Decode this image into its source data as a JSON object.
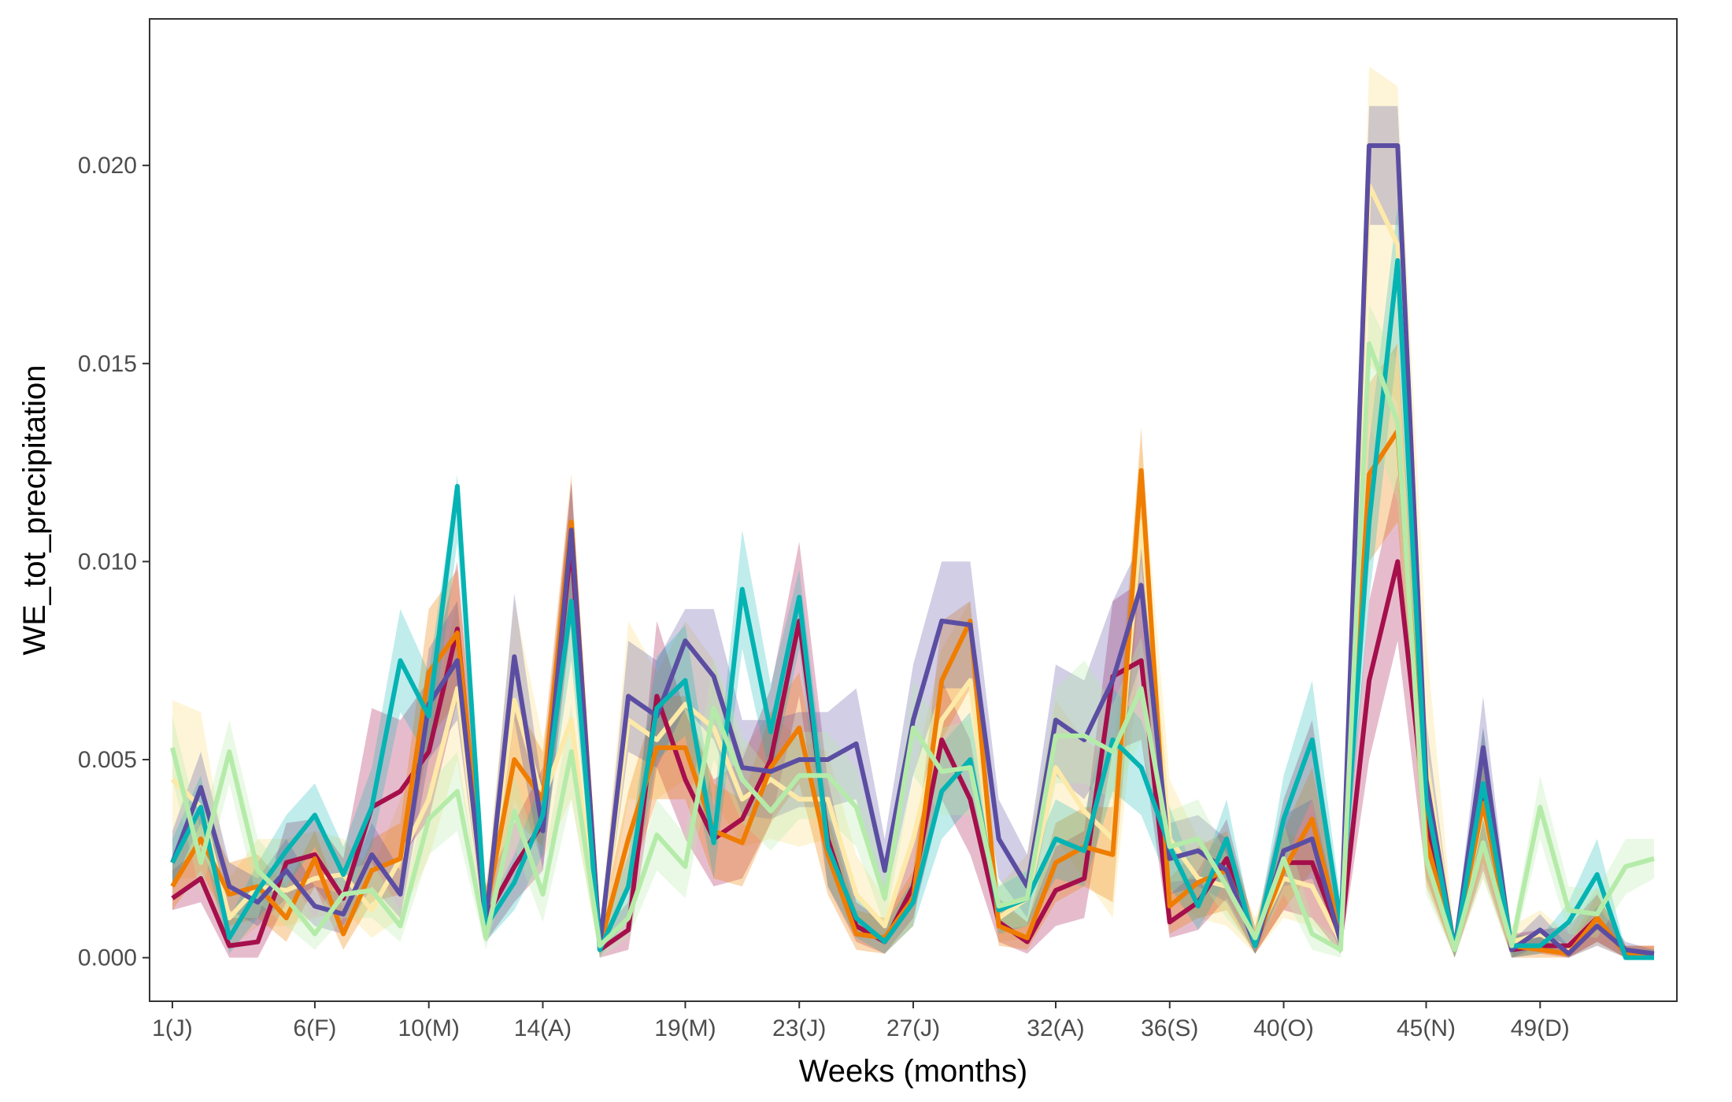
{
  "chart_data": {
    "type": "line",
    "title": "",
    "xlabel": "Weeks (months)",
    "ylabel": "WE_tot_precipitation",
    "xlim": [
      0.2,
      53.8
    ],
    "ylim": [
      -0.0011,
      0.0237
    ],
    "yticks": [
      {
        "value": 0.0,
        "label": "0.000"
      },
      {
        "value": 0.005,
        "label": "0.005"
      },
      {
        "value": 0.01,
        "label": "0.010"
      },
      {
        "value": 0.015,
        "label": "0.015"
      },
      {
        "value": 0.02,
        "label": "0.020"
      }
    ],
    "xticks": [
      {
        "value": 1,
        "label": "1(J)"
      },
      {
        "value": 6,
        "label": "6(F)"
      },
      {
        "value": 10,
        "label": "10(M)"
      },
      {
        "value": 14,
        "label": "14(A)"
      },
      {
        "value": 19,
        "label": "19(M)"
      },
      {
        "value": 23,
        "label": "23(J)"
      },
      {
        "value": 27,
        "label": "27(J)"
      },
      {
        "value": 32,
        "label": "32(A)"
      },
      {
        "value": 36,
        "label": "36(S)"
      },
      {
        "value": 40,
        "label": "40(O)"
      },
      {
        "value": 45,
        "label": "45(N)"
      },
      {
        "value": 49,
        "label": "49(D)"
      }
    ],
    "grid": false,
    "legend": "none",
    "x": [
      1,
      2,
      3,
      4,
      5,
      6,
      7,
      8,
      9,
      10,
      11,
      12,
      13,
      14,
      15,
      16,
      17,
      18,
      19,
      20,
      21,
      22,
      23,
      24,
      25,
      26,
      27,
      28,
      29,
      30,
      31,
      32,
      33,
      34,
      35,
      36,
      37,
      38,
      39,
      40,
      41,
      42,
      43,
      44,
      45,
      46,
      47,
      48,
      49,
      50,
      51,
      52,
      53
    ],
    "series": [
      {
        "color": "#fde9a8",
        "band_opacity": 0.45,
        "values": [
          0.0045,
          0.0038,
          0.001,
          0.0018,
          0.0017,
          0.002,
          0.0021,
          0.0012,
          0.0025,
          0.004,
          0.0068,
          0.001,
          0.0065,
          0.004,
          0.006,
          0.0003,
          0.006,
          0.0055,
          0.0064,
          0.0058,
          0.004,
          0.0045,
          0.004,
          0.004,
          0.0016,
          0.0008,
          0.003,
          0.006,
          0.007,
          0.001,
          0.0015,
          0.0048,
          0.0037,
          0.003,
          0.011,
          0.003,
          0.002,
          0.0018,
          0.0005,
          0.002,
          0.0018,
          0.0004,
          0.0195,
          0.018,
          0.005,
          0.0002,
          0.0038,
          0.0004,
          0.0006,
          0.0002,
          0.001,
          0.0001,
          0.0001
        ],
        "lower": [
          0.002,
          0.002,
          0.0002,
          0.0008,
          0.0008,
          0.001,
          0.0012,
          0.0005,
          0.001,
          0.0025,
          0.005,
          0.0004,
          0.004,
          0.0025,
          0.004,
          0.0,
          0.004,
          0.004,
          0.0045,
          0.004,
          0.0028,
          0.003,
          0.0028,
          0.003,
          0.0008,
          0.0003,
          0.0015,
          0.004,
          0.005,
          0.0004,
          0.0005,
          0.003,
          0.002,
          0.001,
          0.008,
          0.0015,
          0.001,
          0.0008,
          0.0001,
          0.001,
          0.0008,
          0.0001,
          0.015,
          0.014,
          0.002,
          0.0,
          0.002,
          0.0,
          0.0002,
          0.0,
          0.0003,
          0.0,
          0.0
        ],
        "upper": [
          0.0065,
          0.0062,
          0.002,
          0.003,
          0.003,
          0.0032,
          0.003,
          0.0022,
          0.004,
          0.0058,
          0.009,
          0.0018,
          0.009,
          0.0055,
          0.0085,
          0.0008,
          0.0085,
          0.0072,
          0.0085,
          0.0075,
          0.0052,
          0.0062,
          0.0055,
          0.0052,
          0.0026,
          0.0015,
          0.0045,
          0.0078,
          0.009,
          0.0018,
          0.0026,
          0.0065,
          0.0055,
          0.005,
          0.013,
          0.0045,
          0.003,
          0.0028,
          0.001,
          0.0032,
          0.0028,
          0.0008,
          0.0225,
          0.022,
          0.008,
          0.0005,
          0.0055,
          0.0008,
          0.0012,
          0.0006,
          0.0018,
          0.0003,
          0.0003
        ]
      },
      {
        "color": "#a50f4b",
        "band_opacity": 0.28,
        "values": [
          0.0015,
          0.002,
          0.0003,
          0.0004,
          0.0024,
          0.0026,
          0.0015,
          0.0038,
          0.0042,
          0.0052,
          0.0083,
          0.001,
          0.0023,
          0.0034,
          0.0105,
          0.0002,
          0.0007,
          0.0066,
          0.0045,
          0.003,
          0.0035,
          0.005,
          0.0085,
          0.003,
          0.0008,
          0.0004,
          0.0018,
          0.0055,
          0.004,
          0.0009,
          0.0004,
          0.0017,
          0.002,
          0.0071,
          0.0075,
          0.0009,
          0.0014,
          0.0025,
          0.0003,
          0.0024,
          0.0024,
          0.0005,
          0.007,
          0.01,
          0.0035,
          0.0002,
          0.004,
          0.0002,
          0.0003,
          0.0003,
          0.001,
          0.0001,
          0.0001
        ],
        "lower": [
          0.0012,
          0.0014,
          0.0,
          0.0,
          0.0014,
          0.0018,
          0.0008,
          0.0022,
          0.0025,
          0.0035,
          0.0065,
          0.0004,
          0.0014,
          0.0022,
          0.0085,
          0.0,
          0.0002,
          0.0048,
          0.003,
          0.0018,
          0.002,
          0.0034,
          0.0066,
          0.0018,
          0.0004,
          0.0001,
          0.001,
          0.004,
          0.0026,
          0.0004,
          0.0001,
          0.0008,
          0.001,
          0.0052,
          0.0055,
          0.0005,
          0.0007,
          0.0015,
          0.0001,
          0.0012,
          0.001,
          0.0001,
          0.005,
          0.008,
          0.002,
          0.0,
          0.0022,
          0.0,
          0.0001,
          0.0,
          0.0004,
          0.0,
          0.0
        ],
        "upper": [
          0.0022,
          0.0028,
          0.001,
          0.001,
          0.0034,
          0.0035,
          0.0025,
          0.0063,
          0.006,
          0.007,
          0.01,
          0.0018,
          0.0034,
          0.0048,
          0.012,
          0.0006,
          0.0014,
          0.0085,
          0.0062,
          0.0045,
          0.005,
          0.0068,
          0.0105,
          0.0045,
          0.0014,
          0.0009,
          0.0028,
          0.007,
          0.0055,
          0.0015,
          0.0009,
          0.0028,
          0.0032,
          0.009,
          0.0095,
          0.0016,
          0.0022,
          0.0035,
          0.0007,
          0.004,
          0.006,
          0.0012,
          0.009,
          0.0122,
          0.005,
          0.0005,
          0.0058,
          0.0006,
          0.0007,
          0.0008,
          0.0016,
          0.0003,
          0.0003
        ]
      },
      {
        "color": "#ef7d00",
        "band_opacity": 0.3,
        "values": [
          0.0018,
          0.003,
          0.0016,
          0.0018,
          0.001,
          0.0025,
          0.0006,
          0.0022,
          0.0025,
          0.0072,
          0.0082,
          0.0012,
          0.005,
          0.004,
          0.011,
          0.0003,
          0.003,
          0.0053,
          0.0053,
          0.0032,
          0.0029,
          0.0048,
          0.0058,
          0.0026,
          0.0006,
          0.0005,
          0.0015,
          0.007,
          0.0085,
          0.0008,
          0.0005,
          0.0024,
          0.0028,
          0.0026,
          0.0123,
          0.0013,
          0.0019,
          0.0022,
          0.0004,
          0.0022,
          0.0035,
          0.0006,
          0.0122,
          0.0133,
          0.003,
          0.0002,
          0.0039,
          0.0003,
          0.0002,
          0.0001,
          0.001,
          0.0001,
          0.0001
        ],
        "lower": [
          0.0012,
          0.0022,
          0.0008,
          0.001,
          0.0004,
          0.0018,
          0.0002,
          0.0014,
          0.0016,
          0.0055,
          0.0065,
          0.0006,
          0.0035,
          0.0028,
          0.009,
          0.0,
          0.0018,
          0.004,
          0.004,
          0.002,
          0.0018,
          0.0034,
          0.0044,
          0.0016,
          0.0002,
          0.0001,
          0.0008,
          0.0055,
          0.0068,
          0.0003,
          0.0002,
          0.0014,
          0.0018,
          0.0014,
          0.01,
          0.0006,
          0.001,
          0.0012,
          0.0001,
          0.0012,
          0.0022,
          0.0002,
          0.01,
          0.011,
          0.0018,
          0.0,
          0.0024,
          0.0,
          0.0,
          0.0,
          0.0004,
          0.0,
          0.0
        ],
        "upper": [
          0.0024,
          0.0038,
          0.0024,
          0.0026,
          0.0018,
          0.0032,
          0.0012,
          0.003,
          0.0034,
          0.0088,
          0.0098,
          0.0018,
          0.0065,
          0.0052,
          0.0122,
          0.0007,
          0.0042,
          0.0066,
          0.0066,
          0.0044,
          0.004,
          0.0062,
          0.0072,
          0.0036,
          0.0012,
          0.001,
          0.0022,
          0.0085,
          0.009,
          0.0014,
          0.0009,
          0.0034,
          0.0038,
          0.0038,
          0.0134,
          0.002,
          0.0028,
          0.0032,
          0.0008,
          0.0032,
          0.0048,
          0.0011,
          0.0145,
          0.0155,
          0.0042,
          0.0005,
          0.0054,
          0.0006,
          0.0005,
          0.0003,
          0.0016,
          0.0003,
          0.0003
        ]
      },
      {
        "color": "#5b4ea2",
        "band_opacity": 0.28,
        "values": [
          0.0024,
          0.0043,
          0.0018,
          0.0014,
          0.0022,
          0.0013,
          0.0011,
          0.0026,
          0.0016,
          0.0064,
          0.0075,
          0.0009,
          0.0076,
          0.0032,
          0.0108,
          0.0003,
          0.0066,
          0.0061,
          0.008,
          0.0071,
          0.0048,
          0.0047,
          0.005,
          0.005,
          0.0054,
          0.0022,
          0.006,
          0.0085,
          0.0084,
          0.003,
          0.0018,
          0.006,
          0.0055,
          0.007,
          0.0094,
          0.0025,
          0.0027,
          0.0022,
          0.0003,
          0.0027,
          0.003,
          0.0004,
          0.0205,
          0.0205,
          0.0045,
          0.0002,
          0.0053,
          0.0002,
          0.0007,
          0.0001,
          0.0008,
          0.0002,
          0.0001
        ],
        "lower": [
          0.0018,
          0.0034,
          0.0012,
          0.0008,
          0.0015,
          0.0008,
          0.0006,
          0.0018,
          0.001,
          0.005,
          0.006,
          0.0005,
          0.006,
          0.0022,
          0.009,
          0.0,
          0.0052,
          0.0048,
          0.0063,
          0.0055,
          0.0036,
          0.0035,
          0.0038,
          0.0038,
          0.004,
          0.0014,
          0.0046,
          0.0068,
          0.0068,
          0.002,
          0.001,
          0.0046,
          0.004,
          0.0052,
          0.0075,
          0.0016,
          0.0018,
          0.0014,
          0.0001,
          0.0018,
          0.002,
          0.0001,
          0.0185,
          0.0185,
          0.003,
          0.0,
          0.004,
          0.0,
          0.0003,
          0.0,
          0.0003,
          0.0,
          0.0
        ],
        "upper": [
          0.0032,
          0.0052,
          0.0024,
          0.002,
          0.003,
          0.0018,
          0.0016,
          0.0034,
          0.0022,
          0.0078,
          0.009,
          0.0013,
          0.0092,
          0.0042,
          0.012,
          0.0006,
          0.008,
          0.0075,
          0.0088,
          0.0088,
          0.006,
          0.006,
          0.0062,
          0.0062,
          0.0068,
          0.003,
          0.0074,
          0.01,
          0.01,
          0.004,
          0.0026,
          0.0074,
          0.007,
          0.009,
          0.0105,
          0.0034,
          0.0036,
          0.003,
          0.0005,
          0.0036,
          0.004,
          0.0008,
          0.0215,
          0.0215,
          0.006,
          0.0004,
          0.0066,
          0.0004,
          0.0011,
          0.0003,
          0.0013,
          0.0004,
          0.0002
        ]
      },
      {
        "color": "#05b3b3",
        "band_opacity": 0.25,
        "values": [
          0.0024,
          0.0038,
          0.0005,
          0.0017,
          0.0027,
          0.0036,
          0.0021,
          0.0038,
          0.0075,
          0.0061,
          0.0119,
          0.0008,
          0.0019,
          0.0036,
          0.009,
          0.0002,
          0.0018,
          0.0063,
          0.007,
          0.0029,
          0.0093,
          0.0057,
          0.0091,
          0.0028,
          0.001,
          0.0004,
          0.0014,
          0.0042,
          0.005,
          0.0012,
          0.0015,
          0.003,
          0.0027,
          0.0055,
          0.0048,
          0.0028,
          0.0013,
          0.003,
          0.0003,
          0.0035,
          0.0055,
          0.0009,
          0.011,
          0.0176,
          0.004,
          0.0002,
          0.0044,
          0.0003,
          0.0003,
          0.0009,
          0.0021,
          0.0,
          0.0
        ],
        "lower": [
          0.0018,
          0.003,
          0.0001,
          0.001,
          0.0018,
          0.0028,
          0.0014,
          0.0028,
          0.0062,
          0.005,
          0.0105,
          0.0004,
          0.0012,
          0.0026,
          0.0075,
          0.0,
          0.001,
          0.005,
          0.0056,
          0.002,
          0.0078,
          0.0045,
          0.0078,
          0.0018,
          0.0005,
          0.0001,
          0.0008,
          0.003,
          0.0038,
          0.0006,
          0.0008,
          0.002,
          0.0018,
          0.0042,
          0.0036,
          0.0018,
          0.0007,
          0.002,
          0.0001,
          0.0024,
          0.004,
          0.0004,
          0.009,
          0.0155,
          0.0026,
          0.0,
          0.003,
          0.0,
          0.0001,
          0.0004,
          0.0012,
          0.0,
          0.0
        ],
        "upper": [
          0.003,
          0.0046,
          0.001,
          0.0024,
          0.0036,
          0.0044,
          0.0028,
          0.0048,
          0.0088,
          0.0072,
          0.0122,
          0.0012,
          0.0026,
          0.0046,
          0.0105,
          0.0005,
          0.0026,
          0.0076,
          0.0084,
          0.0038,
          0.0108,
          0.0069,
          0.0098,
          0.0038,
          0.0015,
          0.0008,
          0.002,
          0.0054,
          0.0062,
          0.0018,
          0.0022,
          0.004,
          0.0036,
          0.0068,
          0.006,
          0.0038,
          0.0019,
          0.004,
          0.0005,
          0.0046,
          0.007,
          0.0014,
          0.013,
          0.019,
          0.0054,
          0.0004,
          0.0058,
          0.0006,
          0.0005,
          0.0014,
          0.003,
          0.0002,
          0.0002
        ]
      },
      {
        "color": "#b5eba9",
        "band_opacity": 0.3,
        "values": [
          0.0053,
          0.0024,
          0.0052,
          0.0022,
          0.0015,
          0.0006,
          0.0016,
          0.0017,
          0.0008,
          0.0035,
          0.0042,
          0.0005,
          0.0037,
          0.0016,
          0.0052,
          0.0003,
          0.001,
          0.0031,
          0.0023,
          0.0063,
          0.0045,
          0.0037,
          0.0046,
          0.0046,
          0.0038,
          0.0015,
          0.0058,
          0.0047,
          0.0048,
          0.0013,
          0.0015,
          0.0056,
          0.0056,
          0.0052,
          0.0068,
          0.0028,
          0.003,
          0.0018,
          0.0005,
          0.0025,
          0.0006,
          0.0002,
          0.0155,
          0.0135,
          0.0025,
          0.0002,
          0.0029,
          0.0003,
          0.0038,
          0.0012,
          0.0011,
          0.0023,
          0.0025
        ],
        "lower": [
          0.0045,
          0.0016,
          0.0044,
          0.0014,
          0.0008,
          0.0002,
          0.001,
          0.001,
          0.0004,
          0.0026,
          0.0032,
          0.0002,
          0.0028,
          0.0009,
          0.004,
          0.0,
          0.0005,
          0.0022,
          0.0015,
          0.005,
          0.0034,
          0.0027,
          0.0035,
          0.0035,
          0.0028,
          0.0008,
          0.0046,
          0.0036,
          0.0036,
          0.0007,
          0.0008,
          0.0044,
          0.0044,
          0.004,
          0.0055,
          0.0019,
          0.002,
          0.001,
          0.0002,
          0.0016,
          0.0002,
          0.0,
          0.0135,
          0.0115,
          0.0016,
          0.0,
          0.002,
          0.0,
          0.003,
          0.0006,
          0.0005,
          0.0016,
          0.002
        ],
        "upper": [
          0.0061,
          0.0032,
          0.006,
          0.003,
          0.0022,
          0.001,
          0.0022,
          0.0024,
          0.0012,
          0.0044,
          0.0052,
          0.0008,
          0.0046,
          0.0023,
          0.0064,
          0.0006,
          0.0015,
          0.004,
          0.0031,
          0.0076,
          0.0056,
          0.0047,
          0.0057,
          0.0057,
          0.0048,
          0.0022,
          0.007,
          0.0058,
          0.006,
          0.0019,
          0.0022,
          0.0068,
          0.0075,
          0.0064,
          0.0081,
          0.0037,
          0.004,
          0.0026,
          0.0008,
          0.0034,
          0.001,
          0.0004,
          0.0165,
          0.015,
          0.0034,
          0.0004,
          0.0038,
          0.0006,
          0.0046,
          0.0018,
          0.0017,
          0.003,
          0.003
        ]
      }
    ]
  }
}
